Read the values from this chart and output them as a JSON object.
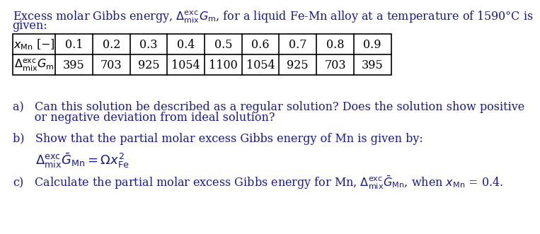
{
  "title_line1": "Excess molar Gibbs energy, $\\Delta^{\\mathrm{exc}}_{\\mathrm{mix}}G_{\\mathrm{m}}$, for a liquid Fe-Mn alloy at a temperature of 1590°C is",
  "title_line2": "given:",
  "col_headers": [
    "0.1",
    "0.2",
    "0.3",
    "0.4",
    "0.5",
    "0.6",
    "0.7",
    "0.8",
    "0.9"
  ],
  "row_values": [
    "395",
    "703",
    "925",
    "1054",
    "1100",
    "1054",
    "925",
    "703",
    "395"
  ],
  "qa_line1": "a)   Can this solution be described as a regular solution? Does the solution show positive",
  "qa_line2": "     or negative deviation from ideal solution?",
  "qb_line": "b)   Show that the partial molar excess Gibbs energy of Mn is given by:",
  "qc_line": "c)   Calculate the partial molar excess Gibbs energy for Mn,",
  "bg_color": "#ffffff",
  "text_color": "#1a1a8c",
  "table_text_color": "#000000",
  "fs": 11.5
}
